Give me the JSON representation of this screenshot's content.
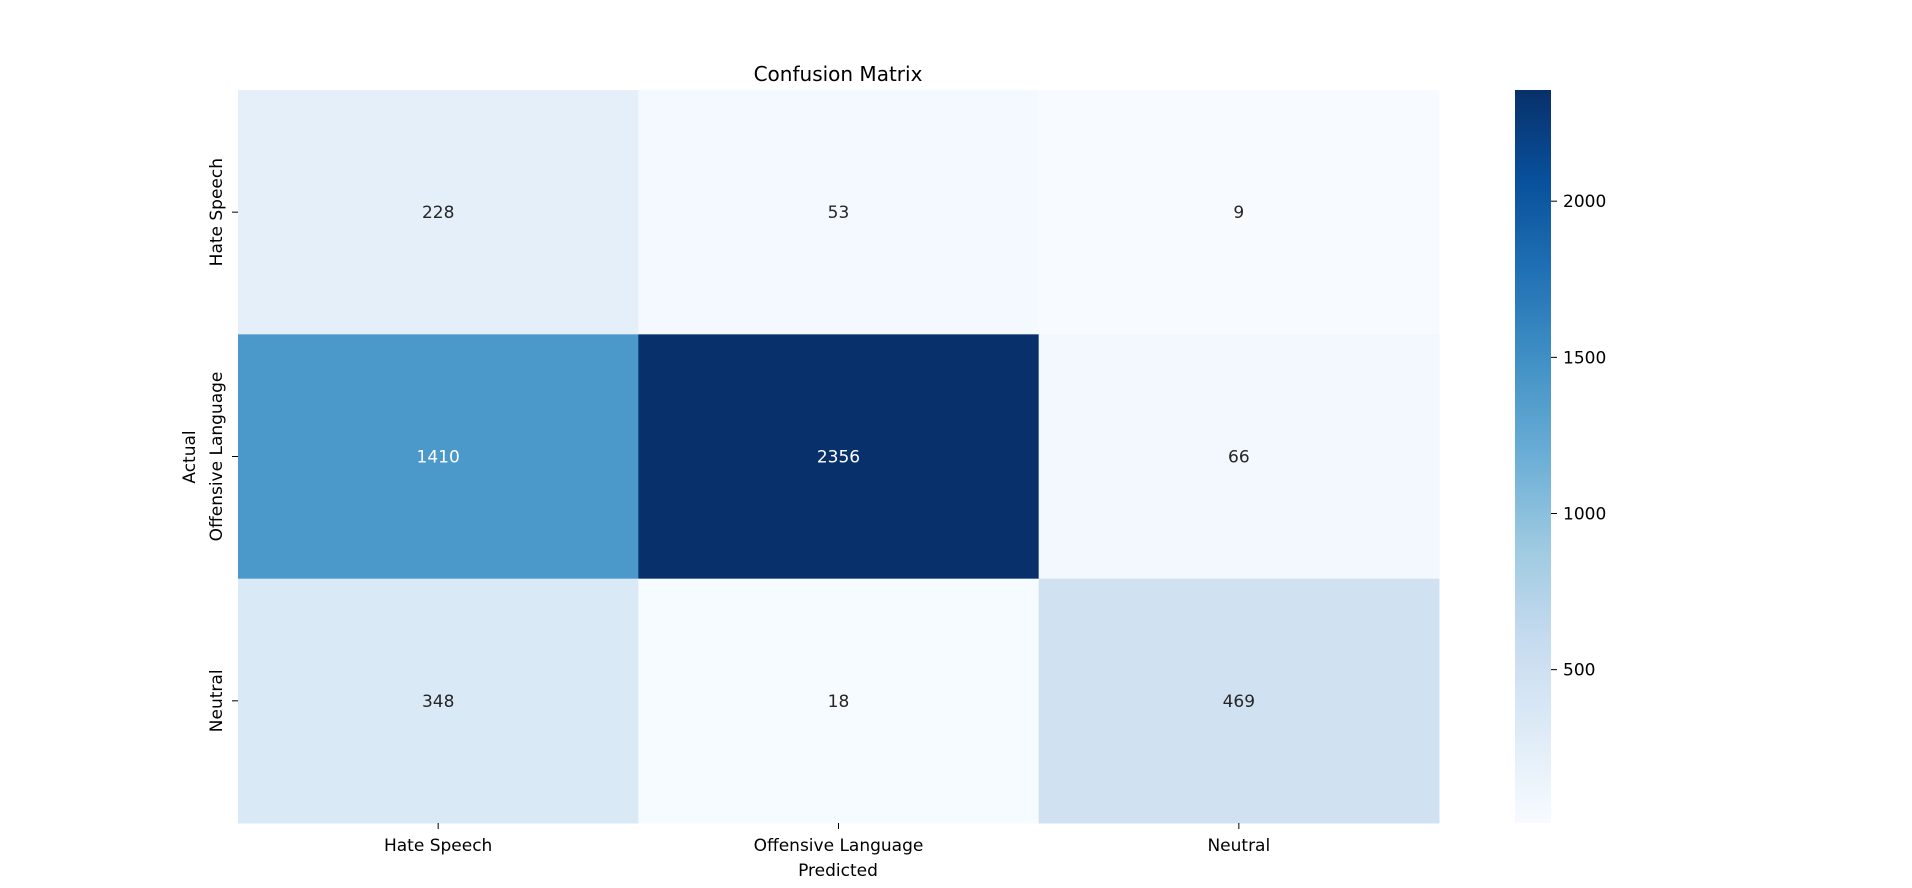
{
  "chart_data": {
    "type": "heatmap",
    "title": "Confusion Matrix",
    "xlabel": "Predicted",
    "ylabel": "Actual",
    "x_categories": [
      "Hate Speech",
      "Offensive Language",
      "Neutral"
    ],
    "y_categories": [
      "Hate Speech",
      "Offensive Language",
      "Neutral"
    ],
    "values": [
      [
        228,
        53,
        9
      ],
      [
        1410,
        2356,
        66
      ],
      [
        348,
        18,
        469
      ]
    ],
    "colormap": "Blues",
    "colorbar": {
      "min": 9,
      "max": 2356,
      "ticks": [
        500,
        1000,
        1500,
        2000
      ]
    },
    "grid": false,
    "legend": "colorbar-right"
  }
}
